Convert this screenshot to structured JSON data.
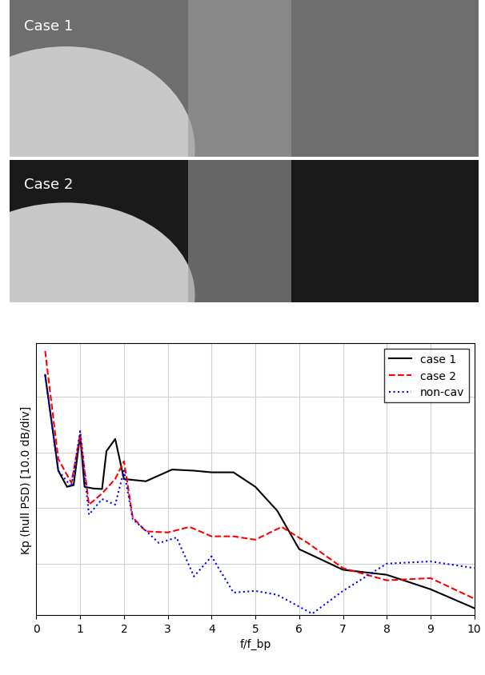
{
  "images": [
    {
      "label": "Case 1"
    },
    {
      "label": "Case 2"
    }
  ],
  "chart_data": {
    "type": "line",
    "x_label": "f/f_bp",
    "y_label": "Kp (hull PSD) [10.0 dB/div]",
    "xlim": [
      0,
      10
    ],
    "xticks": [
      0,
      1,
      2,
      3,
      4,
      5,
      6,
      7,
      8,
      9,
      10
    ],
    "ylim": [
      0.8,
      49.6
    ],
    "yticks": [
      10,
      20,
      30,
      40
    ],
    "grid": true,
    "legend": "upper right",
    "tick_labels": "x",
    "series": [
      {
        "name": "case 1",
        "color": "#000000",
        "line_style": "solid",
        "x": [
          0.2,
          0.5,
          0.7,
          0.85,
          1.0,
          1.1,
          1.3,
          1.5,
          1.6,
          1.8,
          2.0,
          2.5,
          3.1,
          3.6,
          4.0,
          4.5,
          5.0,
          5.5,
          6.0,
          7.0,
          8.0,
          9.0,
          10.0
        ],
        "values": [
          43.9,
          26.7,
          23.8,
          24.1,
          33.1,
          23.8,
          23.5,
          23.4,
          30.2,
          32.4,
          25.2,
          24.8,
          26.9,
          26.7,
          26.4,
          26.4,
          23.8,
          19.5,
          12.6,
          8.9,
          8.0,
          5.4,
          2.0
        ]
      },
      {
        "name": "case 2",
        "color": "#ff0000",
        "line_style": "dashed",
        "x": [
          0.2,
          0.5,
          0.8,
          1.0,
          1.2,
          1.5,
          1.8,
          2.0,
          2.2,
          2.5,
          3.0,
          3.5,
          4.0,
          4.5,
          5.0,
          5.6,
          6.2,
          7.0,
          8.0,
          9.0,
          10.0
        ],
        "values": [
          48.2,
          28.8,
          24.5,
          33.1,
          20.6,
          22.6,
          25.2,
          28.4,
          18.3,
          15.8,
          15.6,
          16.6,
          14.9,
          14.9,
          14.3,
          16.6,
          13.7,
          9.2,
          7.0,
          7.4,
          3.7
        ]
      },
      {
        "name": "non-cav",
        "color": "#0000ff",
        "line_style": "dotted",
        "x": [
          0.2,
          0.5,
          0.8,
          1.0,
          1.2,
          1.5,
          1.8,
          2.0,
          2.2,
          2.5,
          2.8,
          3.2,
          3.6,
          4.0,
          4.5,
          5.0,
          5.5,
          6.3,
          7.0,
          8.0,
          9.0,
          10.0
        ],
        "values": [
          43.9,
          26.7,
          23.8,
          33.8,
          18.8,
          21.6,
          20.6,
          26.7,
          18.0,
          15.9,
          13.7,
          14.7,
          7.7,
          11.3,
          4.8,
          5.1,
          4.4,
          1.0,
          5.1,
          10.0,
          10.4,
          9.2
        ]
      }
    ]
  }
}
